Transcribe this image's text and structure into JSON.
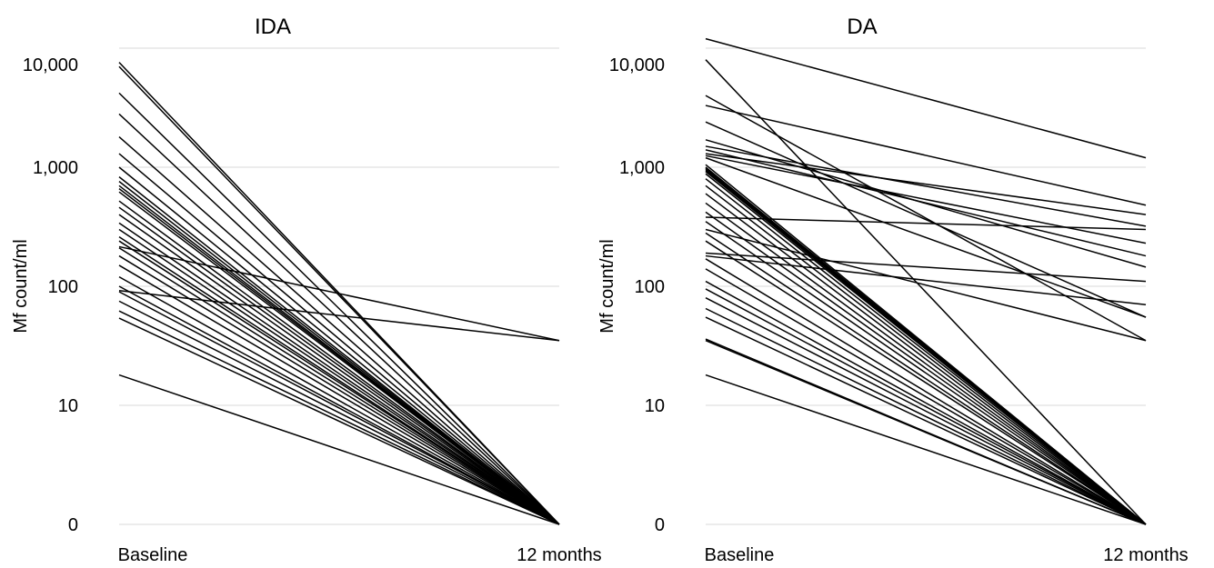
{
  "chart_data": [
    {
      "type": "line",
      "title": "IDA",
      "xlabel": "",
      "ylabel": "Mf count/ml",
      "categories": [
        "Baseline",
        "12 months"
      ],
      "y_scale": "log",
      "y_ticks": [
        {
          "value": 1,
          "label": "0"
        },
        {
          "value": 10,
          "label": "10"
        },
        {
          "value": 100,
          "label": "100"
        },
        {
          "value": 1000,
          "label": "1,000"
        },
        {
          "value": 10000,
          "label": "10,000"
        }
      ],
      "ylim": [
        1,
        10000
      ],
      "grid": true,
      "series": [
        {
          "values": [
            7600,
            1
          ]
        },
        {
          "values": [
            7000,
            1
          ]
        },
        {
          "values": [
            4200,
            1
          ]
        },
        {
          "values": [
            2800,
            1
          ]
        },
        {
          "values": [
            1800,
            1
          ]
        },
        {
          "values": [
            1300,
            1
          ]
        },
        {
          "values": [
            1000,
            1
          ]
        },
        {
          "values": [
            830,
            1
          ]
        },
        {
          "values": [
            760,
            1
          ]
        },
        {
          "values": [
            700,
            1
          ]
        },
        {
          "values": [
            660,
            1
          ]
        },
        {
          "values": [
            620,
            1
          ]
        },
        {
          "values": [
            520,
            1
          ]
        },
        {
          "values": [
            460,
            1
          ]
        },
        {
          "values": [
            400,
            1
          ]
        },
        {
          "values": [
            340,
            1
          ]
        },
        {
          "values": [
            300,
            1
          ]
        },
        {
          "values": [
            260,
            1
          ]
        },
        {
          "values": [
            240,
            1
          ]
        },
        {
          "values": [
            210,
            1
          ]
        },
        {
          "values": [
            180,
            1
          ]
        },
        {
          "values": [
            150,
            1
          ]
        },
        {
          "values": [
            120,
            1
          ]
        },
        {
          "values": [
            100,
            1
          ]
        },
        {
          "values": [
            90,
            1
          ]
        },
        {
          "values": [
            75,
            1
          ]
        },
        {
          "values": [
            62,
            1
          ]
        },
        {
          "values": [
            54,
            1
          ]
        },
        {
          "values": [
            18,
            1
          ]
        },
        {
          "values": [
            215,
            35
          ]
        },
        {
          "values": [
            92,
            35
          ]
        }
      ]
    },
    {
      "type": "line",
      "title": "DA",
      "xlabel": "",
      "ylabel": "Mf count/ml",
      "categories": [
        "Baseline",
        "12 months"
      ],
      "y_scale": "log",
      "y_ticks": [
        {
          "value": 1,
          "label": "0"
        },
        {
          "value": 10,
          "label": "10"
        },
        {
          "value": 100,
          "label": "100"
        },
        {
          "value": 1000,
          "label": "1,000"
        },
        {
          "value": 10000,
          "label": "10,000"
        }
      ],
      "ylim": [
        1,
        10000
      ],
      "grid": true,
      "series": [
        {
          "values": [
            12000,
            1200
          ]
        },
        {
          "values": [
            8000,
            1
          ]
        },
        {
          "values": [
            4000,
            35
          ]
        },
        {
          "values": [
            3300,
            480
          ]
        },
        {
          "values": [
            2400,
            55
          ]
        },
        {
          "values": [
            1700,
            145
          ]
        },
        {
          "values": [
            1500,
            320
          ]
        },
        {
          "values": [
            1400,
            180
          ]
        },
        {
          "values": [
            1300,
            400
          ]
        },
        {
          "values": [
            1250,
            230
          ]
        },
        {
          "values": [
            1200,
            55
          ]
        },
        {
          "values": [
            1050,
            1
          ]
        },
        {
          "values": [
            1000,
            1
          ]
        },
        {
          "values": [
            980,
            1
          ]
        },
        {
          "values": [
            960,
            1
          ]
        },
        {
          "values": [
            940,
            1
          ]
        },
        {
          "values": [
            920,
            1
          ]
        },
        {
          "values": [
            880,
            1
          ]
        },
        {
          "values": [
            800,
            1
          ]
        },
        {
          "values": [
            700,
            1
          ]
        },
        {
          "values": [
            600,
            1
          ]
        },
        {
          "values": [
            500,
            1
          ]
        },
        {
          "values": [
            420,
            1
          ]
        },
        {
          "values": [
            380,
            300
          ]
        },
        {
          "values": [
            350,
            1
          ]
        },
        {
          "values": [
            300,
            35
          ]
        },
        {
          "values": [
            280,
            1
          ]
        },
        {
          "values": [
            240,
            1
          ]
        },
        {
          "values": [
            190,
            110
          ]
        },
        {
          "values": [
            180,
            70
          ]
        },
        {
          "values": [
            170,
            1
          ]
        },
        {
          "values": [
            140,
            1
          ]
        },
        {
          "values": [
            110,
            1
          ]
        },
        {
          "values": [
            95,
            1
          ]
        },
        {
          "values": [
            80,
            1
          ]
        },
        {
          "values": [
            65,
            1
          ]
        },
        {
          "values": [
            55,
            1
          ]
        },
        {
          "values": [
            36,
            1
          ]
        },
        {
          "values": [
            35,
            1
          ]
        },
        {
          "values": [
            18,
            1
          ]
        }
      ]
    }
  ]
}
